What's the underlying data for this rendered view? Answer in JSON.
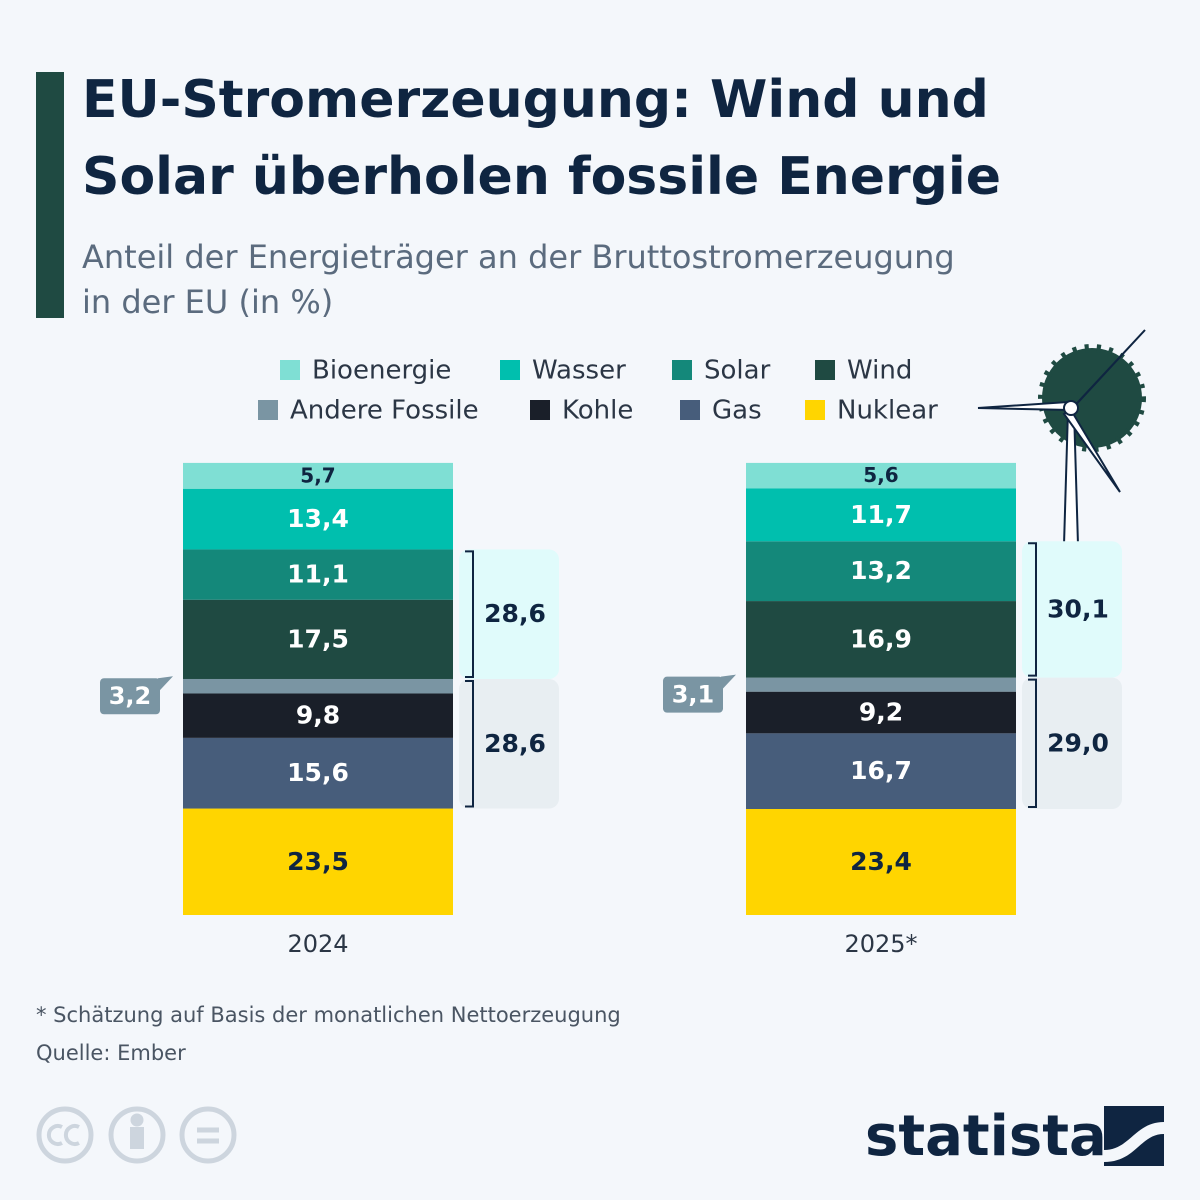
{
  "chart_data": {
    "type": "stacked-bar",
    "title": [
      "EU-Stromerzeugung: Wind und",
      "Solar überholen fossile Energie"
    ],
    "subtitle": [
      "Anteil der Energieträger an der Bruttostromerzeugung",
      "in der EU (in %)"
    ],
    "categories": [
      "2024",
      "2025*"
    ],
    "series": [
      {
        "name": "Bioenergie",
        "color": "#7fdfd4",
        "values": [
          5.7,
          5.6
        ],
        "value_labels": [
          "5,7",
          "5,6"
        ]
      },
      {
        "name": "Wasser",
        "color": "#00bfae",
        "values": [
          13.4,
          11.7
        ],
        "value_labels": [
          "13,4",
          "11,7"
        ]
      },
      {
        "name": "Solar",
        "color": "#14887a",
        "values": [
          11.1,
          13.2
        ],
        "value_labels": [
          "11,1",
          "13,2"
        ]
      },
      {
        "name": "Wind",
        "color": "#1f4a42",
        "values": [
          17.5,
          16.9
        ],
        "value_labels": [
          "17,5",
          "16,9"
        ]
      },
      {
        "name": "Andere Fossile",
        "color": "#7a95a3",
        "values": [
          3.2,
          3.1
        ],
        "value_labels": [
          "3,2",
          "3,1"
        ]
      },
      {
        "name": "Kohle",
        "color": "#1a1f29",
        "values": [
          9.8,
          9.2
        ],
        "value_labels": [
          "9,8",
          "9,2"
        ]
      },
      {
        "name": "Gas",
        "color": "#475d7b",
        "values": [
          15.6,
          16.7
        ],
        "value_labels": [
          "15,6",
          "16,7"
        ]
      },
      {
        "name": "Nuklear",
        "color": "#ffd500",
        "values": [
          23.5,
          23.4
        ],
        "value_labels": [
          "23,5",
          "23,4"
        ]
      }
    ],
    "bracket_totals": [
      {
        "values": [
          28.6,
          30.1
        ],
        "value_labels": [
          "28,6",
          "30,1"
        ]
      },
      {
        "values": [
          28.6,
          29.0
        ],
        "value_labels": [
          "28,6",
          "29,0"
        ]
      }
    ],
    "footnote": "* Schätzung auf Basis der monatlichen Nettoerzeugung",
    "source": "Quelle: Ember",
    "brand": "statista"
  }
}
